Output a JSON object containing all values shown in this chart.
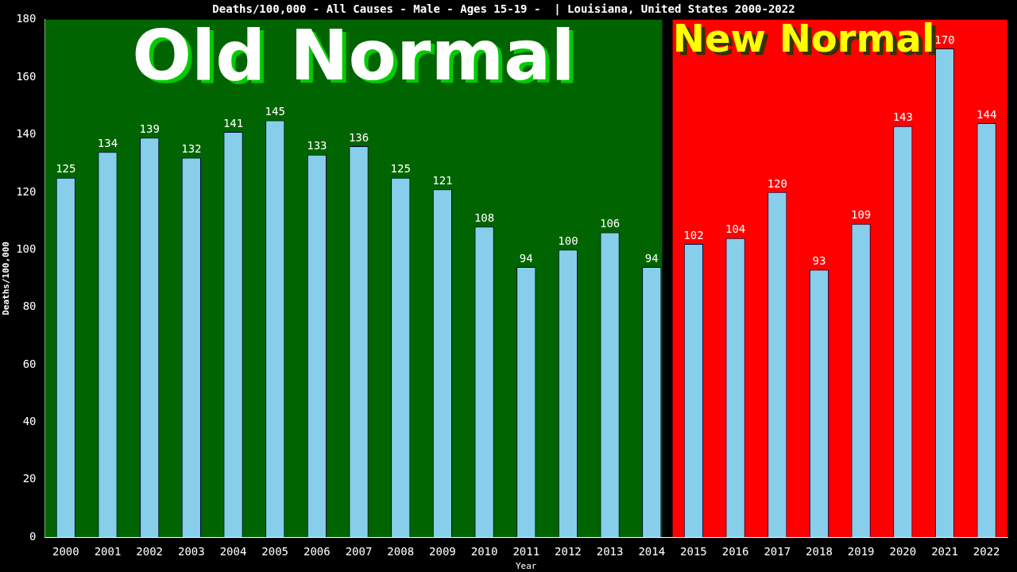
{
  "chart_data": {
    "type": "bar",
    "title": "Deaths/100,000 - All Causes - Male - Ages 15-19 -  | Louisiana, United States 2000-2022",
    "xlabel": "Year",
    "ylabel": "Deaths/100,000",
    "categories": [
      "2000",
      "2001",
      "2002",
      "2003",
      "2004",
      "2005",
      "2006",
      "2007",
      "2008",
      "2009",
      "2010",
      "2011",
      "2012",
      "2013",
      "2014",
      "2015",
      "2016",
      "2017",
      "2018",
      "2019",
      "2020",
      "2021",
      "2022"
    ],
    "values": [
      125,
      134,
      139,
      132,
      141,
      145,
      133,
      136,
      125,
      121,
      108,
      94,
      100,
      106,
      94,
      102,
      104,
      120,
      93,
      109,
      143,
      170,
      144
    ],
    "color": "#87ceeb",
    "ylim": [
      0,
      180
    ],
    "yticks": [
      0,
      20,
      40,
      60,
      80,
      100,
      120,
      140,
      160,
      180
    ],
    "bands": [
      {
        "axis": "x",
        "from": "2000",
        "to": "2014",
        "label": "Old Normal",
        "color": "#006400"
      },
      {
        "axis": "x",
        "from": "2015",
        "to": "2022",
        "label": "New Normal",
        "color": "#ff0000"
      }
    ],
    "data_labels": true,
    "grid": false,
    "legend": false
  }
}
